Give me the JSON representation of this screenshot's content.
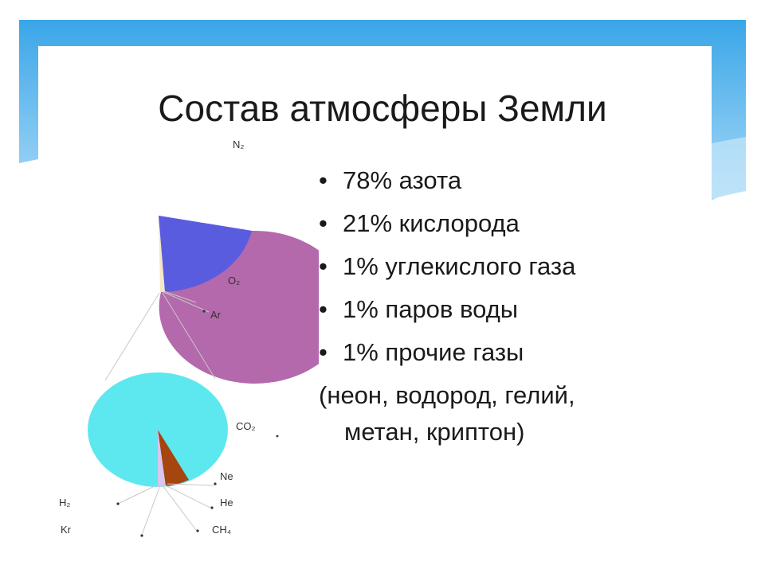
{
  "slide": {
    "title": "Состав атмосферы Земли",
    "bullets": [
      {
        "marker": "•",
        "text": "78% азота"
      },
      {
        "marker": "•",
        "text": "21% кислорода"
      },
      {
        "marker": "•",
        "text": "1% углекислого газа"
      },
      {
        "marker": "•",
        "text": "1% паров воды"
      },
      {
        "marker": "•",
        "text": "1% прочие газы"
      }
    ],
    "note_line1": "(неон, водород, гелий,",
    "note_line2": "метан, криптон)"
  },
  "diagram": {
    "top_pie": {
      "labels": {
        "n2": "N₂",
        "o2": "O₂",
        "ar": "Ar"
      },
      "colors": {
        "n2": "#b469ac",
        "o2": "#5a5ce0",
        "ar": "#f1e8c8"
      }
    },
    "bottom_pie": {
      "labels": {
        "co2": "CO₂",
        "ne": "Ne",
        "he": "He",
        "ch4": "CH₄",
        "h2": "H₂",
        "kr": "Kr"
      },
      "colors": {
        "co2": "#5de8ef",
        "ne": "#a5450f",
        "other": "#d8c6ee"
      }
    }
  },
  "theme": {
    "banner_light": "#9fd4f5",
    "banner_dark": "#1e8fd8"
  }
}
